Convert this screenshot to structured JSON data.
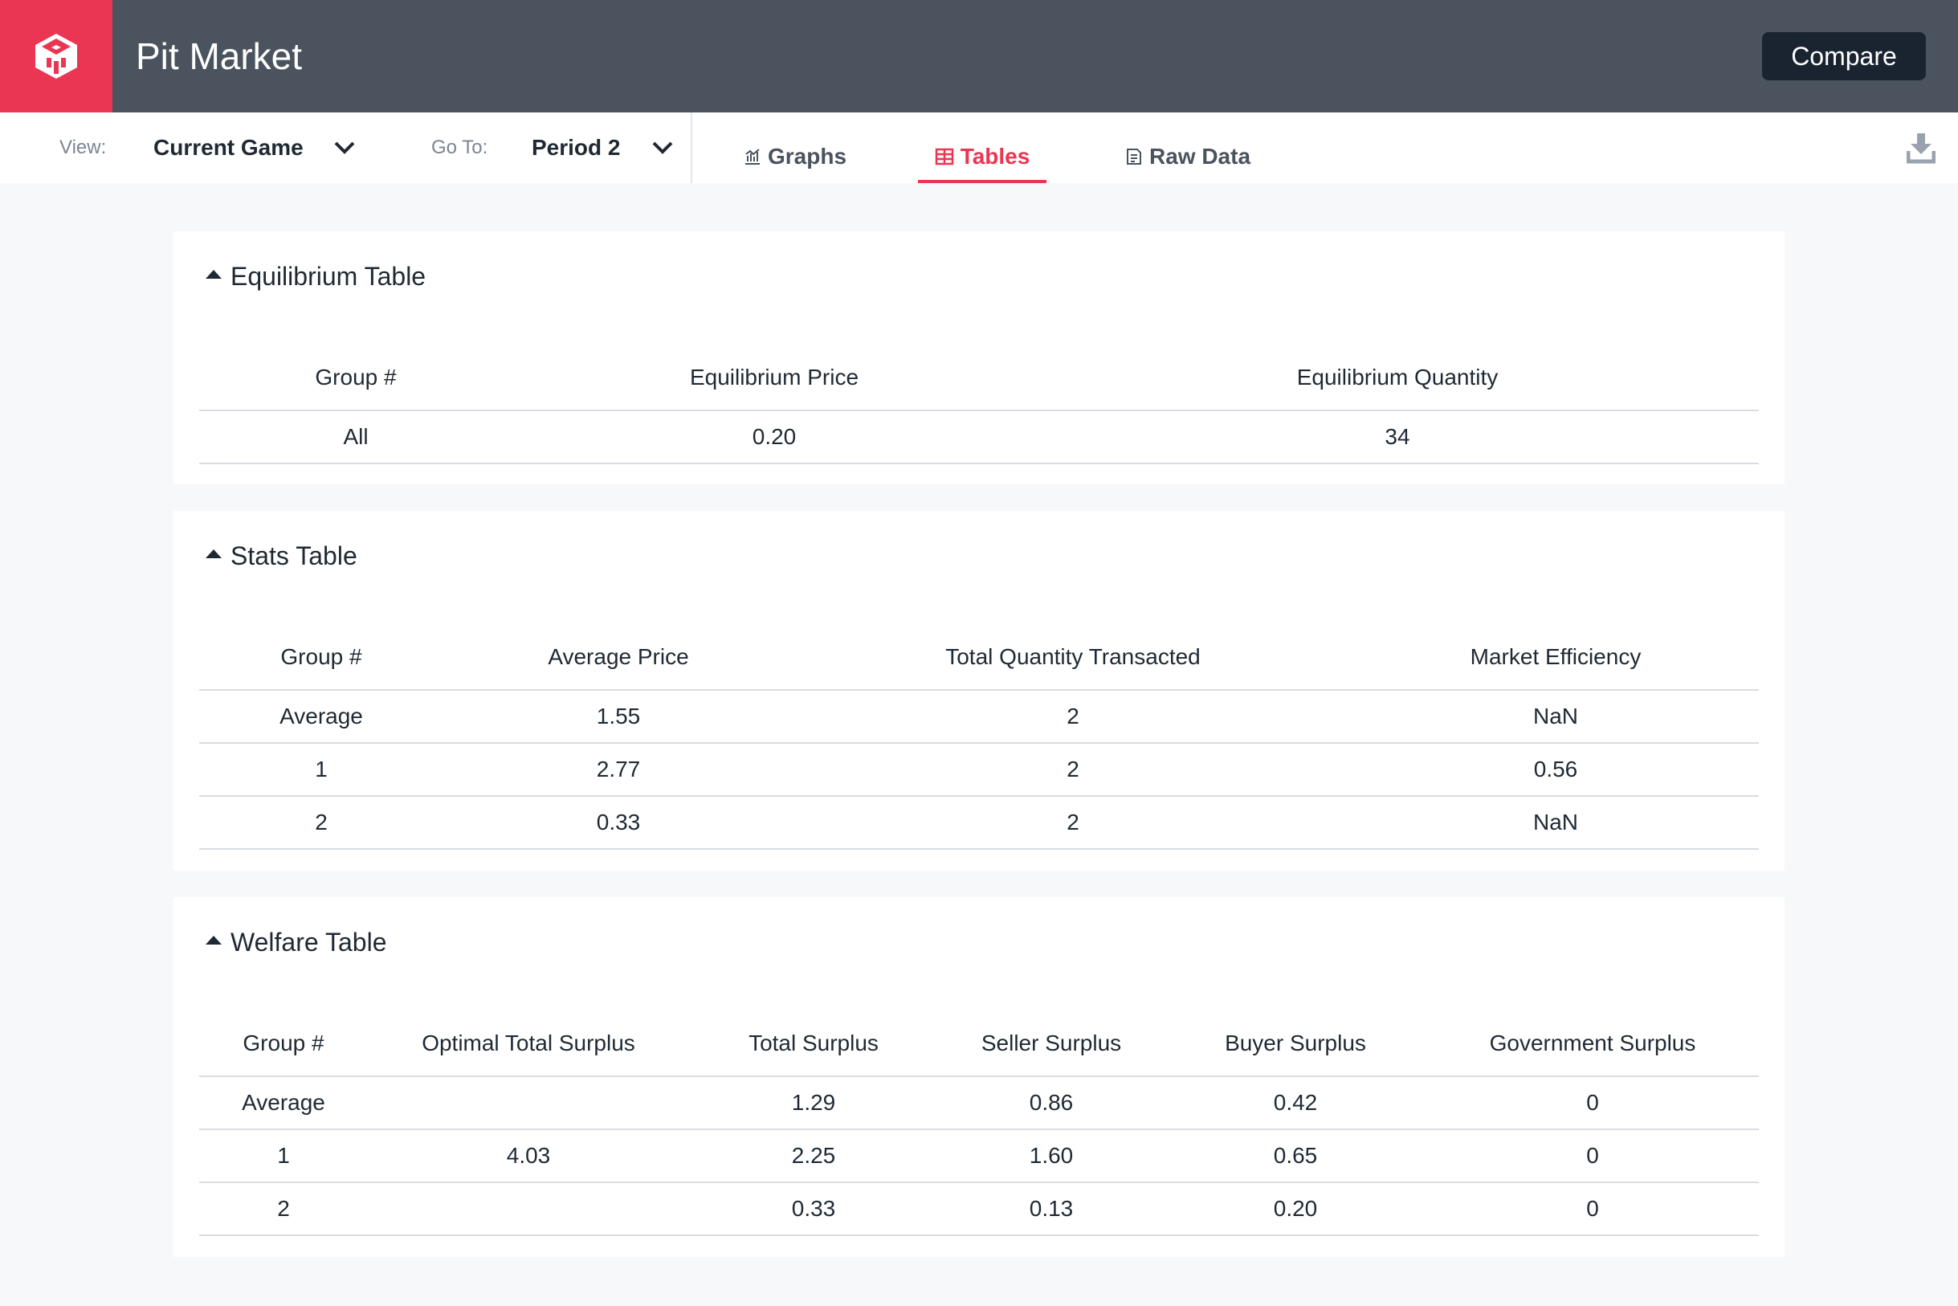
{
  "app": {
    "title": "Pit Market",
    "compare_label": "Compare"
  },
  "toolbar": {
    "view_label": "View:",
    "view_value": "Current Game",
    "goto_label": "Go To:",
    "goto_value": "Period 2",
    "tabs": [
      {
        "label": "Graphs",
        "icon": "chart-icon"
      },
      {
        "label": "Tables",
        "icon": "table-icon",
        "active": true
      },
      {
        "label": "Raw Data",
        "icon": "data-icon"
      }
    ],
    "download_icon": "download-icon"
  },
  "colors": {
    "brand": "#ea3652",
    "header": "#4a535e",
    "button": "#1a2431"
  },
  "equilibrium": {
    "title": "Equilibrium Table",
    "headers": [
      "Group #",
      "Equilibrium Price",
      "Equilibrium Quantity"
    ],
    "rows": [
      [
        "All",
        "0.20",
        "34"
      ]
    ]
  },
  "stats": {
    "title": "Stats Table",
    "headers": [
      "Group #",
      "Average Price",
      "Total Quantity Transacted",
      "Market Efficiency"
    ],
    "rows": [
      [
        "Average",
        "1.55",
        "2",
        "NaN"
      ],
      [
        "1",
        "2.77",
        "2",
        "0.56"
      ],
      [
        "2",
        "0.33",
        "2",
        "NaN"
      ]
    ]
  },
  "welfare": {
    "title": "Welfare Table",
    "headers": [
      "Group #",
      "Optimal Total Surplus",
      "Total Surplus",
      "Seller Surplus",
      "Buyer Surplus",
      "Government Surplus"
    ],
    "rows": [
      [
        "Average",
        "",
        "1.29",
        "0.86",
        "0.42",
        "0"
      ],
      [
        "1",
        "4.03",
        "2.25",
        "1.60",
        "0.65",
        "0"
      ],
      [
        "2",
        "",
        "0.33",
        "0.13",
        "0.20",
        "0"
      ]
    ]
  }
}
